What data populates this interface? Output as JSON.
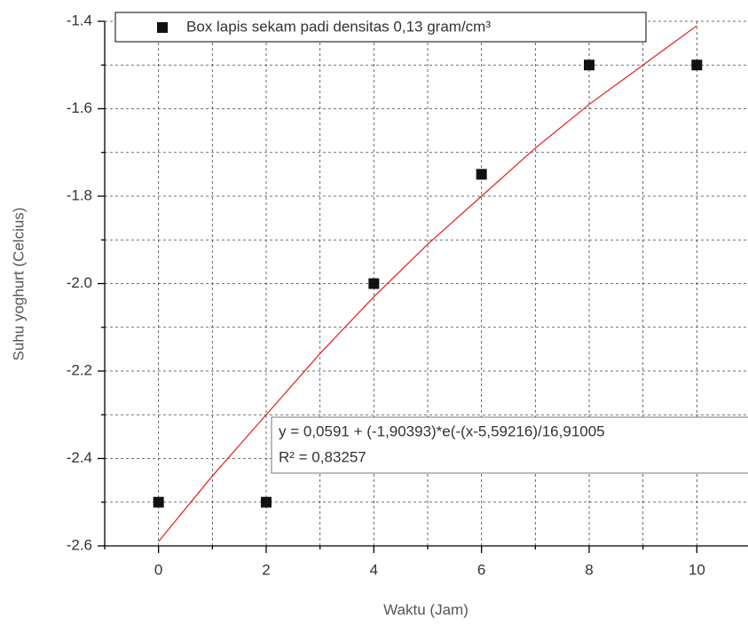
{
  "chart_data": {
    "type": "scatter",
    "xlabel": "Waktu (Jam)",
    "ylabel": "Suhu yoghurt (Celcius)",
    "xlim": [
      -1,
      11
    ],
    "ylim": [
      -2.6,
      -1.4
    ],
    "xticks": [
      0,
      2,
      4,
      6,
      8,
      10
    ],
    "yticks": [
      -1.4,
      -1.6,
      -1.8,
      {
        "value": -2.0,
        "label": "-2.0"
      },
      -2.2,
      -2.4,
      -2.6
    ],
    "x_minor_ticks": [
      -1,
      1,
      3,
      5,
      7,
      9
    ],
    "y_minor_ticks": [
      -1.5,
      -1.7,
      -1.9,
      -2.1,
      -2.3,
      -2.5
    ],
    "grid": true,
    "legend": "top",
    "series": [
      {
        "name": "Box lapis sekam padi densitas 0,13 gram/cm³",
        "color": "#111111",
        "marker": "square",
        "x": [
          0,
          2,
          4,
          6,
          8,
          10
        ],
        "values": [
          -2.5,
          -2.5,
          -2.0,
          -1.75,
          -1.5,
          -1.5
        ]
      },
      {
        "color": "#e02020",
        "marker": "line",
        "x": [
          0,
          1,
          2,
          3,
          4,
          5,
          6,
          7,
          8,
          9,
          10
        ],
        "values": [
          -2.59,
          -2.44,
          -2.3,
          -2.16,
          -2.03,
          -1.91,
          -1.8,
          -1.69,
          -1.59,
          -1.5,
          -1.41
        ]
      }
    ],
    "annotation": {
      "equation": "y = 0,0591 + (-1,90393)*e(-(x-5,59216)/16,91005",
      "r_squared": "R² = 0,83257"
    }
  }
}
